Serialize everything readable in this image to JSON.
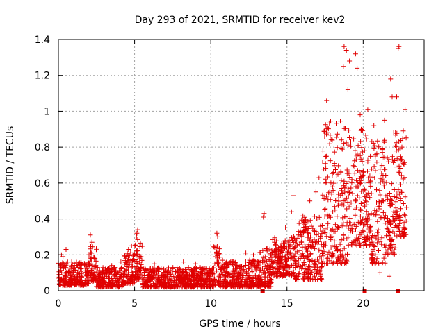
{
  "chart_data": {
    "type": "scatter",
    "title": "Day 293 of 2021, SRMTID for receiver kev2",
    "xlabel": "GPS time / hours",
    "ylabel": "SRMTID / TECUs",
    "xlim": [
      0,
      24
    ],
    "ylim": [
      0,
      1.4
    ],
    "xticks": [
      0,
      5,
      10,
      15,
      20
    ],
    "xtick_labels": [
      "0",
      "5",
      "10",
      "15",
      "20"
    ],
    "yticks": [
      0,
      0.2,
      0.4,
      0.6,
      0.8,
      1,
      1.2,
      1.4
    ],
    "ytick_labels": [
      "0",
      "0.2",
      "0.4",
      "0.6",
      "0.8",
      "1",
      "1.2",
      "1.4"
    ],
    "grid": true,
    "marker": "plus",
    "color": "#e00000",
    "series": [
      {
        "name": "SRMTID",
        "segments": [
          {
            "x": [
              0.0,
              2.0
            ],
            "min": 0.03,
            "max": 0.16,
            "extra": [
              [
                0.2,
                0.2
              ],
              [
                0.5,
                0.23
              ],
              [
                0.3,
                0.19
              ]
            ]
          },
          {
            "x": [
              2.0,
              2.5
            ],
            "min": 0.05,
            "max": 0.25,
            "extra": [
              [
                2.1,
                0.31
              ],
              [
                2.2,
                0.27
              ]
            ]
          },
          {
            "x": [
              2.5,
              4.3
            ],
            "min": 0.02,
            "max": 0.13,
            "extra": [
              [
                3.5,
                0.14
              ],
              [
                4.1,
                0.16
              ]
            ]
          },
          {
            "x": [
              4.3,
              5.0
            ],
            "min": 0.04,
            "max": 0.22,
            "extra": [
              [
                4.8,
                0.25
              ],
              [
                4.6,
                0.23
              ]
            ]
          },
          {
            "x": [
              5.0,
              5.5
            ],
            "min": 0.06,
            "max": 0.3,
            "extra": [
              [
                5.2,
                0.34
              ],
              [
                5.15,
                0.32
              ]
            ]
          },
          {
            "x": [
              5.5,
              10.2
            ],
            "min": 0.02,
            "max": 0.13,
            "extra": [
              [
                6.3,
                0.15
              ],
              [
                8.2,
                0.16
              ],
              [
                9.0,
                0.15
              ]
            ]
          },
          {
            "x": [
              10.2,
              10.6
            ],
            "min": 0.03,
            "max": 0.27,
            "extra": [
              [
                10.4,
                0.32
              ],
              [
                10.45,
                0.3
              ]
            ]
          },
          {
            "x": [
              10.6,
              13.2
            ],
            "min": 0.02,
            "max": 0.17,
            "extra": [
              [
                12.3,
                0.21
              ],
              [
                12.8,
                0.2
              ]
            ]
          },
          {
            "x": [
              13.2,
              14.0
            ],
            "min": 0.02,
            "max": 0.24,
            "extra": [
              [
                13.5,
                0.43
              ],
              [
                13.45,
                0.41
              ]
            ]
          },
          {
            "x": [
              14.0,
              15.5
            ],
            "min": 0.08,
            "max": 0.3,
            "extra": [
              [
                15.3,
                0.44
              ],
              [
                15.4,
                0.53
              ],
              [
                14.9,
                0.35
              ]
            ]
          },
          {
            "x": [
              15.5,
              17.3
            ],
            "min": 0.06,
            "max": 0.42,
            "extra": [
              [
                16.9,
                0.55
              ],
              [
                16.5,
                0.5
              ],
              [
                17.1,
                0.63
              ]
            ]
          },
          {
            "x": [
              17.3,
              19.0
            ],
            "min": 0.15,
            "max": 0.95,
            "extra": [
              [
                18.75,
                1.36
              ],
              [
                18.9,
                1.34
              ],
              [
                18.7,
                1.25
              ],
              [
                19.0,
                1.12
              ],
              [
                17.6,
                1.06
              ]
            ]
          },
          {
            "x": [
              19.0,
              20.5
            ],
            "min": 0.25,
            "max": 0.9,
            "extra": [
              [
                19.5,
                1.32
              ],
              [
                19.6,
                1.24
              ],
              [
                19.1,
                1.28
              ],
              [
                20.3,
                1.01
              ],
              [
                19.8,
                0.98
              ]
            ]
          },
          {
            "x": [
              20.5,
              21.5
            ],
            "min": 0.15,
            "max": 0.85,
            "extra": [
              [
                21.1,
                0.1
              ],
              [
                20.7,
                0.92
              ],
              [
                21.4,
                0.95
              ]
            ]
          },
          {
            "x": [
              21.5,
              22.1
            ],
            "min": 0.2,
            "max": 0.75,
            "extra": [
              [
                21.8,
                1.18
              ],
              [
                21.9,
                1.08
              ],
              [
                22.0,
                0.88
              ],
              [
                21.7,
                0.08
              ]
            ]
          },
          {
            "x": [
              22.1,
              22.85
            ],
            "min": 0.3,
            "max": 0.9,
            "extra": [
              [
                22.3,
                1.35
              ],
              [
                22.35,
                1.36
              ],
              [
                22.2,
                1.08
              ],
              [
                22.75,
                1.01
              ]
            ]
          }
        ]
      }
    ],
    "x_markers_on_axis": [
      13.4,
      20.1,
      22.3
    ]
  }
}
